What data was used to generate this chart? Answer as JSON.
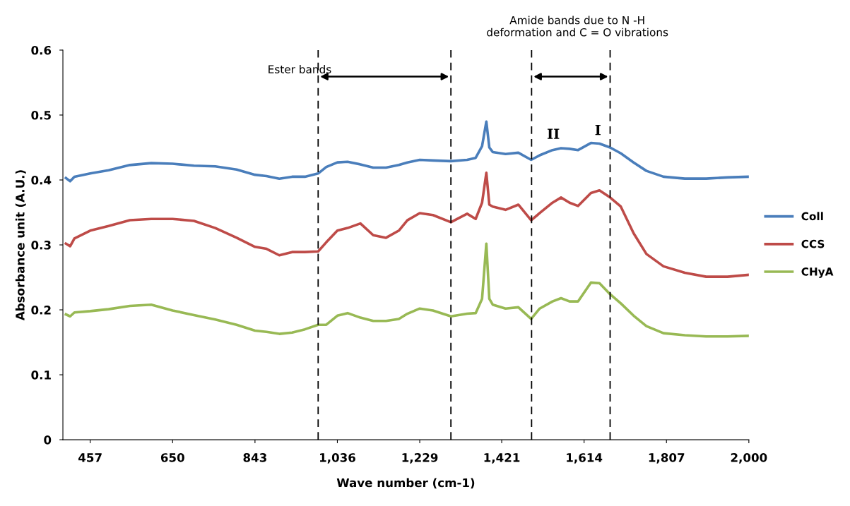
{
  "chart_data": {
    "type": "line",
    "xlabel": "Wave number (cm-1)",
    "ylabel": "Absorbance unit (A.U.)",
    "x": [
      400,
      410,
      420,
      457,
      500,
      550,
      600,
      650,
      700,
      750,
      800,
      843,
      870,
      900,
      930,
      960,
      991,
      1010,
      1036,
      1060,
      1090,
      1120,
      1150,
      1180,
      1200,
      1229,
      1260,
      1302,
      1340,
      1360,
      1375,
      1385,
      1392,
      1400,
      1430,
      1460,
      1490,
      1510,
      1540,
      1560,
      1580,
      1600,
      1630,
      1650,
      1675,
      1700,
      1730,
      1760,
      1800,
      1850,
      1900,
      1950,
      2000
    ],
    "series": [
      {
        "name": "Coll",
        "color": "#4a7ebb",
        "values": [
          0.403,
          0.398,
          0.405,
          0.41,
          0.415,
          0.423,
          0.426,
          0.425,
          0.422,
          0.421,
          0.416,
          0.408,
          0.406,
          0.402,
          0.405,
          0.405,
          0.41,
          0.42,
          0.427,
          0.428,
          0.424,
          0.419,
          0.419,
          0.423,
          0.427,
          0.431,
          0.43,
          0.429,
          0.431,
          0.434,
          0.452,
          0.49,
          0.45,
          0.443,
          0.44,
          0.442,
          0.431,
          0.438,
          0.446,
          0.449,
          0.448,
          0.446,
          0.457,
          0.456,
          0.45,
          0.441,
          0.427,
          0.414,
          0.405,
          0.402,
          0.402,
          0.404,
          0.405
        ]
      },
      {
        "name": "CCS",
        "color": "#be4b48",
        "values": [
          0.302,
          0.298,
          0.31,
          0.322,
          0.329,
          0.338,
          0.34,
          0.34,
          0.337,
          0.326,
          0.311,
          0.297,
          0.294,
          0.284,
          0.289,
          0.289,
          0.29,
          0.304,
          0.322,
          0.326,
          0.333,
          0.315,
          0.311,
          0.322,
          0.338,
          0.349,
          0.346,
          0.335,
          0.348,
          0.34,
          0.365,
          0.411,
          0.362,
          0.359,
          0.354,
          0.362,
          0.338,
          0.349,
          0.365,
          0.373,
          0.365,
          0.36,
          0.38,
          0.384,
          0.373,
          0.359,
          0.318,
          0.286,
          0.267,
          0.257,
          0.251,
          0.251,
          0.254
        ]
      },
      {
        "name": "CHyA",
        "color": "#98b954",
        "values": [
          0.193,
          0.19,
          0.196,
          0.198,
          0.201,
          0.206,
          0.208,
          0.199,
          0.192,
          0.185,
          0.177,
          0.168,
          0.166,
          0.163,
          0.165,
          0.17,
          0.177,
          0.177,
          0.191,
          0.195,
          0.188,
          0.183,
          0.183,
          0.186,
          0.194,
          0.202,
          0.199,
          0.19,
          0.194,
          0.195,
          0.217,
          0.302,
          0.217,
          0.208,
          0.202,
          0.204,
          0.186,
          0.202,
          0.213,
          0.218,
          0.213,
          0.213,
          0.242,
          0.241,
          0.224,
          0.21,
          0.191,
          0.175,
          0.164,
          0.161,
          0.159,
          0.159,
          0.16
        ]
      }
    ],
    "xlim": [
      393,
      2000
    ],
    "xticks": [
      {
        "value": 457,
        "label": "457"
      },
      {
        "value": 650,
        "label": "650"
      },
      {
        "value": 843,
        "label": "843"
      },
      {
        "value": 1036,
        "label": "1,036"
      },
      {
        "value": 1229,
        "label": "1,229"
      },
      {
        "value": 1421,
        "label": "1,421"
      },
      {
        "value": 1614,
        "label": "1,614"
      },
      {
        "value": 1807,
        "label": "1,807"
      },
      {
        "value": 2000,
        "label": "2,000"
      }
    ],
    "ylim": [
      0,
      0.6
    ],
    "yticks": [
      0,
      0.1,
      0.2,
      0.3,
      0.4,
      0.5,
      0.6
    ],
    "ref_lines": [
      {
        "axis": "x",
        "value": 991,
        "line_style": "dashed",
        "color": "#000000"
      },
      {
        "axis": "x",
        "value": 1302,
        "line_style": "dashed",
        "color": "#000000"
      },
      {
        "axis": "x",
        "value": 1491,
        "line_style": "dashed",
        "color": "#000000"
      },
      {
        "axis": "x",
        "value": 1675,
        "line_style": "dashed",
        "color": "#000000"
      }
    ],
    "annotations": [
      "Ester bands",
      "Amide bands due to N -H\ndeformation and C = O vibrations",
      "II",
      "I"
    ],
    "grid": false,
    "legend": "right",
    "marker": "none",
    "line_style": "solid"
  }
}
